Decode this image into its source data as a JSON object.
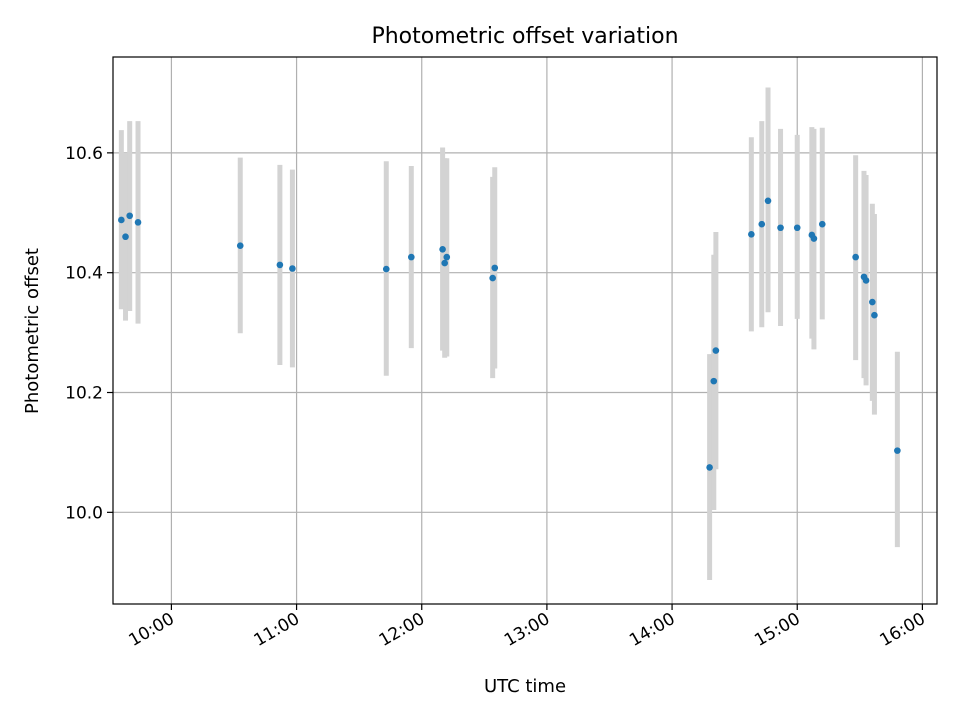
{
  "chart_data": {
    "type": "scatter",
    "title": "Photometric offset variation",
    "xlabel": "UTC time",
    "ylabel": "Photometric offset",
    "xlim": [
      "09:32",
      "16:07"
    ],
    "ylim": [
      9.847,
      10.76
    ],
    "x_ticks": [
      "10:00",
      "11:00",
      "12:00",
      "13:00",
      "14:00",
      "15:00",
      "16:00"
    ],
    "y_ticks": [
      "10.0",
      "10.2",
      "10.4",
      "10.6"
    ],
    "grid": true,
    "marker_color": "#1f77b4",
    "errorbar_color": "#d3d3d3",
    "points": [
      {
        "time": "09:36",
        "value": 10.488,
        "low": 10.339,
        "high": 10.638
      },
      {
        "time": "09:38",
        "value": 10.46,
        "low": 10.32,
        "high": 10.6
      },
      {
        "time": "09:40",
        "value": 10.495,
        "low": 10.336,
        "high": 10.653
      },
      {
        "time": "09:44",
        "value": 10.484,
        "low": 10.315,
        "high": 10.653
      },
      {
        "time": "10:33",
        "value": 10.445,
        "low": 10.299,
        "high": 10.592
      },
      {
        "time": "10:52",
        "value": 10.413,
        "low": 10.246,
        "high": 10.58
      },
      {
        "time": "10:58",
        "value": 10.407,
        "low": 10.242,
        "high": 10.572
      },
      {
        "time": "11:43",
        "value": 10.406,
        "low": 10.228,
        "high": 10.586
      },
      {
        "time": "11:55",
        "value": 10.426,
        "low": 10.274,
        "high": 10.578
      },
      {
        "time": "12:10",
        "value": 10.439,
        "low": 10.27,
        "high": 10.609
      },
      {
        "time": "12:11",
        "value": 10.416,
        "low": 10.258,
        "high": 10.591
      },
      {
        "time": "12:12",
        "value": 10.426,
        "low": 10.26,
        "high": 10.591
      },
      {
        "time": "12:34",
        "value": 10.391,
        "low": 10.224,
        "high": 10.56
      },
      {
        "time": "12:35",
        "value": 10.408,
        "low": 10.24,
        "high": 10.576
      },
      {
        "time": "14:18",
        "value": 10.075,
        "low": 9.887,
        "high": 10.264
      },
      {
        "time": "14:20",
        "value": 10.219,
        "low": 10.004,
        "high": 10.43
      },
      {
        "time": "14:21",
        "value": 10.27,
        "low": 10.072,
        "high": 10.468
      },
      {
        "time": "14:38",
        "value": 10.464,
        "low": 10.302,
        "high": 10.626
      },
      {
        "time": "14:43",
        "value": 10.481,
        "low": 10.309,
        "high": 10.653
      },
      {
        "time": "14:46",
        "value": 10.52,
        "low": 10.334,
        "high": 10.709
      },
      {
        "time": "14:52",
        "value": 10.475,
        "low": 10.311,
        "high": 10.64
      },
      {
        "time": "15:00",
        "value": 10.475,
        "low": 10.323,
        "high": 10.63
      },
      {
        "time": "15:07",
        "value": 10.463,
        "low": 10.29,
        "high": 10.643
      },
      {
        "time": "15:08",
        "value": 10.457,
        "low": 10.272,
        "high": 10.64
      },
      {
        "time": "15:12",
        "value": 10.481,
        "low": 10.322,
        "high": 10.642
      },
      {
        "time": "15:28",
        "value": 10.426,
        "low": 10.254,
        "high": 10.596
      },
      {
        "time": "15:32",
        "value": 10.393,
        "low": 10.224,
        "high": 10.57
      },
      {
        "time": "15:33",
        "value": 10.387,
        "low": 10.212,
        "high": 10.563
      },
      {
        "time": "15:36",
        "value": 10.351,
        "low": 10.186,
        "high": 10.515
      },
      {
        "time": "15:37",
        "value": 10.329,
        "low": 10.163,
        "high": 10.498
      },
      {
        "time": "15:48",
        "value": 10.103,
        "low": 9.942,
        "high": 10.268
      }
    ]
  }
}
